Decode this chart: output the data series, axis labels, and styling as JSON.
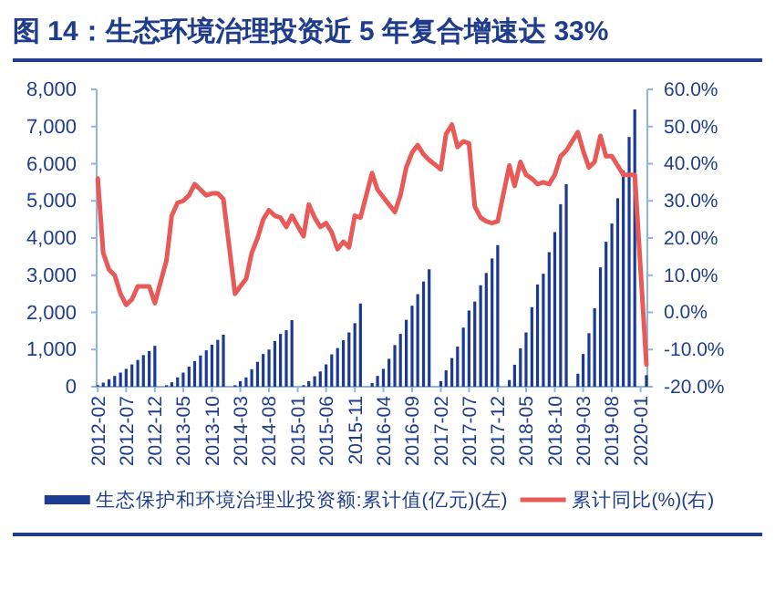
{
  "chart_data": {
    "type": "bar",
    "title": "图 14：生态环境治理投资近 5 年复合增速达 33%",
    "x": [
      "2012-02",
      "2012-03",
      "2012-04",
      "2012-05",
      "2012-06",
      "2012-07",
      "2012-08",
      "2012-09",
      "2012-10",
      "2012-11",
      "2012-12",
      "2013-02",
      "2013-03",
      "2013-04",
      "2013-05",
      "2013-06",
      "2013-07",
      "2013-08",
      "2013-09",
      "2013-10",
      "2013-11",
      "2013-12",
      "2014-02",
      "2014-03",
      "2014-04",
      "2014-05",
      "2014-06",
      "2014-07",
      "2014-08",
      "2014-09",
      "2014-10",
      "2014-11",
      "2014-12",
      "2015-02",
      "2015-03",
      "2015-04",
      "2015-05",
      "2015-06",
      "2015-07",
      "2015-08",
      "2015-09",
      "2015-10",
      "2015-11",
      "2015-12",
      "2016-02",
      "2016-03",
      "2016-04",
      "2016-05",
      "2016-06",
      "2016-07",
      "2016-08",
      "2016-09",
      "2016-10",
      "2016-11",
      "2016-12",
      "2017-02",
      "2017-03",
      "2017-04",
      "2017-05",
      "2017-06",
      "2017-07",
      "2017-08",
      "2017-09",
      "2017-10",
      "2017-11",
      "2017-12",
      "2018-02",
      "2018-03",
      "2018-04",
      "2018-05",
      "2018-06",
      "2018-07",
      "2018-08",
      "2018-09",
      "2018-10",
      "2018-11",
      "2018-12",
      "2019-02",
      "2019-03",
      "2019-04",
      "2019-05",
      "2019-06",
      "2019-07",
      "2019-08",
      "2019-09",
      "2019-10",
      "2019-11",
      "2019-12",
      "2020-02"
    ],
    "xlim": [
      "2012-01-26",
      "2020-02-06"
    ],
    "xticks": [
      "2012-02",
      "2012-07",
      "2012-12",
      "2013-05",
      "2013-10",
      "2014-03",
      "2014-08",
      "2015-01",
      "2015-06",
      "2015-11",
      "2016-04",
      "2016-09",
      "2017-02",
      "2017-07",
      "2017-12",
      "2018-05",
      "2018-10",
      "2019-03",
      "2019-08",
      "2020-01"
    ],
    "ylim": [
      0,
      8000
    ],
    "yticks": [
      0,
      {
        "value": 1000,
        "label": "1,000"
      },
      {
        "value": 2000,
        "label": "2,000"
      },
      {
        "value": 3000,
        "label": "3,000"
      },
      {
        "value": 4000,
        "label": "4,000"
      },
      {
        "value": 5000,
        "label": "5,000"
      },
      {
        "value": 6000,
        "label": "6,000"
      },
      {
        "value": 7000,
        "label": "7,000"
      },
      {
        "value": 8000,
        "label": "8,000"
      }
    ],
    "y2lim": [
      -20,
      60
    ],
    "y2ticks": [
      {
        "value": -20,
        "label": "-20.0%"
      },
      {
        "value": -10,
        "label": "-10.0%"
      },
      {
        "value": 0,
        "label": "0.0%"
      },
      {
        "value": 10,
        "label": "10.0%"
      },
      {
        "value": 20,
        "label": "20.0%"
      },
      {
        "value": 30,
        "label": "30.0%"
      },
      {
        "value": 40,
        "label": "40.0%"
      },
      {
        "value": 50,
        "label": "50.0%"
      },
      {
        "value": 60,
        "label": "60.0%"
      }
    ],
    "legend": "bottom",
    "series": [
      {
        "name": "生态保护和环境治理业投资额:累计值(亿元)(左)",
        "color": "#1b3a93",
        "values": [
          40,
          110,
          200,
          290,
          380,
          480,
          600,
          720,
          850,
          960,
          1100,
          40,
          120,
          250,
          380,
          540,
          690,
          840,
          980,
          1130,
          1260,
          1400,
          40,
          150,
          250,
          470,
          670,
          880,
          1000,
          1230,
          1420,
          1520,
          1790,
          40,
          150,
          280,
          410,
          600,
          870,
          1040,
          1250,
          1460,
          1710,
          2240,
          100,
          290,
          480,
          750,
          1120,
          1420,
          1800,
          2180,
          2490,
          2830,
          3160,
          150,
          440,
          770,
          1080,
          1590,
          2050,
          2290,
          2730,
          3060,
          3450,
          3810,
          180,
          590,
          1030,
          1460,
          2140,
          2750,
          3040,
          3620,
          4160,
          4910,
          5450,
          350,
          880,
          1440,
          2110,
          3210,
          3900,
          4390,
          5070,
          5820,
          6720,
          7460,
          310
        ]
      },
      {
        "name": "累计同比(%)(右)",
        "type": "line",
        "axis": "y2",
        "color": "#e85a57",
        "values": [
          36,
          16,
          11.5,
          10,
          5,
          2,
          3.5,
          7,
          7,
          7,
          2.5,
          14,
          26,
          29.5,
          30,
          31.5,
          34.5,
          33,
          31.5,
          32,
          32,
          30.5,
          5,
          7,
          9,
          16,
          20,
          25,
          27.5,
          26,
          25.5,
          23,
          26,
          20.5,
          29,
          25.5,
          23,
          24,
          21.5,
          17,
          19,
          17.5,
          26,
          25.5,
          37.5,
          33,
          31,
          29,
          27,
          31.5,
          39,
          43,
          45,
          42.5,
          41,
          38.5,
          48,
          50.5,
          44.5,
          46,
          45.5,
          28.5,
          25.5,
          24.5,
          24,
          24.5,
          39.5,
          34,
          40.5,
          37,
          36,
          34.5,
          35,
          34.5,
          37,
          42,
          43.5,
          48.5,
          43.5,
          39,
          40.5,
          47.5,
          42,
          42,
          39.5,
          37,
          37,
          37,
          -14
        ]
      }
    ]
  }
}
